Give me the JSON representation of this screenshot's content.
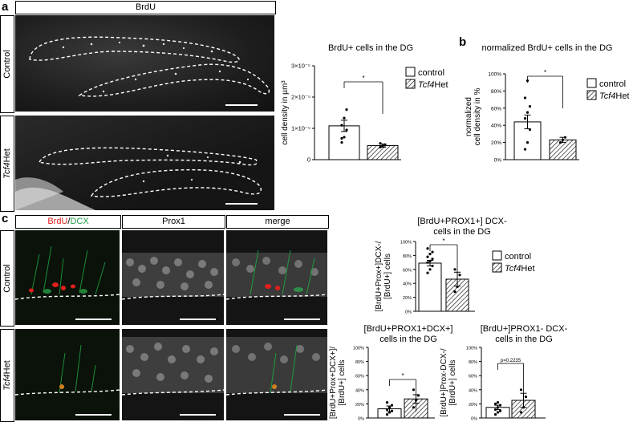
{
  "panel_labels": {
    "a": "a",
    "b": "b",
    "c": "c"
  },
  "panel_a": {
    "header": "BrdU",
    "rows": [
      {
        "label": "Control",
        "label_italic": "",
        "label_rest": ""
      },
      {
        "label": "",
        "label_italic": "Tcf4",
        "label_rest": "Het"
      }
    ]
  },
  "panel_c": {
    "headers": {
      "brdu": "BrdU",
      "sep": "/",
      "dcx": "DCX",
      "prox1": "Prox1",
      "merge": "merge"
    },
    "rows": [
      {
        "label": "Control",
        "label_italic": "",
        "label_rest": ""
      },
      {
        "label": "",
        "label_italic": "Tcf4",
        "label_rest": "Het"
      }
    ]
  },
  "colors": {
    "brdu": "#e0201c",
    "dcx": "#21a04a",
    "hatch": "#000000"
  },
  "chart_data": [
    {
      "id": "a-chart",
      "type": "bar",
      "title": "BrdU+ cells in the DG",
      "ylabel": "cell density in µm³",
      "categories": [
        "control",
        "Tcf4Het"
      ],
      "values": [
        1.08e-05,
        4.5e-06
      ],
      "errors": [
        1.8e-06,
        5e-07
      ],
      "points": [
        [
          6.8e-06,
          7.2e-06,
          9.5e-06,
          1.1e-05,
          1.33e-05,
          1.6e-05,
          5.5e-06
        ],
        [
          4e-06,
          4.4e-06,
          4.8e-06,
          5.2e-06
        ]
      ],
      "ylim": [
        0,
        3e-05
      ],
      "ticks": [
        "0",
        "1×10⁻⁵",
        "2×10⁻⁵",
        "3×10⁻⁵"
      ],
      "significance": "*",
      "legend": [
        {
          "name": "control",
          "italic": "",
          "rest": ""
        },
        {
          "name": "",
          "italic": "Tcf4",
          "rest": "Het"
        }
      ]
    },
    {
      "id": "b-chart",
      "type": "bar",
      "title": "normalized BrdU+ cells in the DG",
      "ylabel": [
        "normalized",
        "cell density in %"
      ],
      "categories": [
        "control",
        "Tcf4Het"
      ],
      "values": [
        44,
        23
      ],
      "errors": [
        8,
        3
      ],
      "points": [
        [
          12,
          20,
          35,
          48,
          55,
          62,
          72,
          92
        ],
        [
          20,
          23,
          26
        ]
      ],
      "ylim": [
        0,
        100
      ],
      "ticks": [
        "0%",
        "20%",
        "40%",
        "60%",
        "80%",
        "100%"
      ],
      "significance": "*",
      "legend": [
        {
          "name": "control",
          "italic": "",
          "rest": ""
        },
        {
          "name": "",
          "italic": "Tcf4",
          "rest": "Het"
        }
      ]
    },
    {
      "id": "c1-chart",
      "type": "bar",
      "title": [
        "[BrdU+PROX1+] DCX-",
        "cells in the DG"
      ],
      "ylabel": [
        "[BrdU+Prox+]DCX-/",
        "[BrdU+] cells"
      ],
      "categories": [
        "control",
        "Tcf4Het"
      ],
      "values": [
        69,
        46
      ],
      "errors": [
        4,
        10
      ],
      "points": [
        [
          55,
          60,
          65,
          70,
          72,
          75,
          78,
          82,
          85,
          90
        ],
        [
          28,
          35,
          52,
          60
        ]
      ],
      "ylim": [
        0,
        100
      ],
      "ticks": [
        "0%",
        "20%",
        "40%",
        "60%",
        "80%",
        "100%"
      ],
      "significance": "*",
      "legend": [
        {
          "name": "control",
          "italic": "",
          "rest": ""
        },
        {
          "name": "",
          "italic": "Tcf4",
          "rest": "Het"
        }
      ]
    },
    {
      "id": "c2-chart",
      "type": "bar",
      "title": [
        "[BrdU+PROX1+DCX+]",
        "cells in the DG"
      ],
      "ylabel": [
        "[BrdU+Prox+DCX+]/",
        "[BrdU+] cells"
      ],
      "categories": [
        "control",
        "Tcf4Het"
      ],
      "values": [
        13,
        27
      ],
      "errors": [
        4,
        6
      ],
      "points": [
        [
          5,
          8,
          10,
          12,
          15,
          18,
          22
        ],
        [
          15,
          25,
          32,
          40
        ]
      ],
      "ylim": [
        0,
        100
      ],
      "ticks": [
        "0%",
        "20%",
        "40%",
        "60%",
        "80%",
        "100%"
      ],
      "significance": "*",
      "legend": []
    },
    {
      "id": "c3-chart",
      "type": "bar",
      "title": [
        "[BrdU+]PROX1- DCX-",
        "cells in the DG"
      ],
      "ylabel": [
        "[BrdU+]Prox-DCX-/",
        "[BrdU+] cells"
      ],
      "categories": [
        "control",
        "Tcf4Het"
      ],
      "values": [
        15,
        25
      ],
      "errors": [
        3,
        10
      ],
      "points": [
        [
          5,
          8,
          10,
          12,
          15,
          18,
          20,
          22
        ],
        [
          8,
          15,
          30,
          40
        ]
      ],
      "ylim": [
        0,
        100
      ],
      "ticks": [
        "0%",
        "20%",
        "40%",
        "60%",
        "80%",
        "100%"
      ],
      "significance": "p=0.2235",
      "legend": []
    }
  ]
}
